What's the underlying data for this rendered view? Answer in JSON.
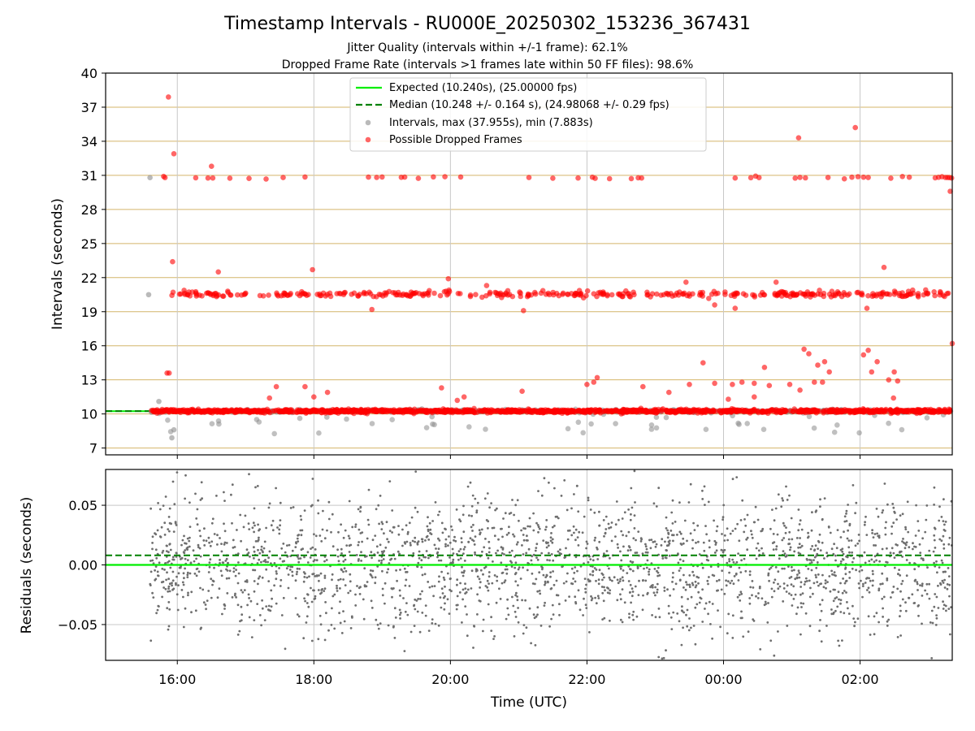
{
  "chart_data": {
    "title": "Timestamp Intervals - RU000E_20250302_153236_367431",
    "subtitle1": "Jitter Quality (intervals within +/-1 frame): 62.1%",
    "subtitle2": "Dropped Frame Rate (intervals >1 frames late within 50 FF files): 98.6%",
    "xlabel": "Time (UTC)",
    "x_ticks": [
      "16:00",
      "18:00",
      "20:00",
      "22:00",
      "00:00",
      "02:00"
    ],
    "x_tick_hours": [
      16,
      18,
      20,
      22,
      24,
      26
    ],
    "x_range_hours": [
      14.95,
      27.35
    ],
    "top_panel": {
      "type": "scatter",
      "ylabel": "Intervals (seconds)",
      "ylim": [
        6.4,
        40
      ],
      "y_ticks": [
        7,
        10,
        13,
        16,
        19,
        22,
        25,
        28,
        31,
        34,
        37,
        40
      ],
      "grid": "horizontal (goldenrod) and vertical (gray)",
      "legend_position": "upper center",
      "expected_interval": 10.24,
      "median_interval": 10.248,
      "legend": [
        {
          "label": "Expected (10.240s), (25.00000 fps)",
          "style": "solid-line",
          "color": "#00ee00"
        },
        {
          "label": "Median (10.248 +/- 0.164 s), (24.98068 +/- 0.29 fps)",
          "style": "dashed-line",
          "color": "#008000"
        },
        {
          "label": "Intervals, max (37.955s), min (7.883s)",
          "style": "marker",
          "color": "#8c8c8c"
        },
        {
          "label": "Possible Dropped Frames",
          "style": "marker",
          "color": "#ff0000"
        }
      ],
      "intervals_max": 37.955,
      "intervals_min": 7.883,
      "bands_approx": [
        {
          "level": 10.25,
          "description": "main band of intervals from ~15.6h to end"
        },
        {
          "level": 20.5,
          "description": "dropped-frame band (2x interval)"
        },
        {
          "level": 30.8,
          "description": "dropped-frame band (3x interval)"
        }
      ],
      "dropped_frame_outliers": [
        [
          15.87,
          37.9
        ],
        [
          15.95,
          32.9
        ],
        [
          16.5,
          31.8
        ],
        [
          15.93,
          23.4
        ],
        [
          16.6,
          22.5
        ],
        [
          17.98,
          22.7
        ],
        [
          19.97,
          21.9
        ],
        [
          20.53,
          21.3
        ],
        [
          23.45,
          21.6
        ],
        [
          24.77,
          21.6
        ],
        [
          26.35,
          22.9
        ],
        [
          25.1,
          34.3
        ],
        [
          25.93,
          35.2
        ],
        [
          27.35,
          16.2
        ],
        [
          27.32,
          29.6
        ],
        [
          15.85,
          13.6
        ],
        [
          15.88,
          13.6
        ],
        [
          18.85,
          19.2
        ],
        [
          21.07,
          19.1
        ],
        [
          23.87,
          19.6
        ],
        [
          24.17,
          19.3
        ],
        [
          26.1,
          19.3
        ],
        [
          17.45,
          12.4
        ],
        [
          17.87,
          12.4
        ],
        [
          17.35,
          11.4
        ],
        [
          18.2,
          11.9
        ],
        [
          18.0,
          11.5
        ],
        [
          19.87,
          12.3
        ],
        [
          20.2,
          11.5
        ],
        [
          20.1,
          11.2
        ],
        [
          21.05,
          12.0
        ],
        [
          22.0,
          12.6
        ],
        [
          22.15,
          13.2
        ],
        [
          22.1,
          12.8
        ],
        [
          22.82,
          12.4
        ],
        [
          23.2,
          11.9
        ],
        [
          23.5,
          12.6
        ],
        [
          23.7,
          14.5
        ],
        [
          23.87,
          12.7
        ],
        [
          24.07,
          11.3
        ],
        [
          24.45,
          11.5
        ],
        [
          24.45,
          12.7
        ],
        [
          24.27,
          12.8
        ],
        [
          24.13,
          12.6
        ],
        [
          24.67,
          12.5
        ],
        [
          24.6,
          14.1
        ],
        [
          24.97,
          12.6
        ],
        [
          25.12,
          12.1
        ],
        [
          25.18,
          15.7
        ],
        [
          25.25,
          15.3
        ],
        [
          25.33,
          12.8
        ],
        [
          25.38,
          14.3
        ],
        [
          25.45,
          12.8
        ],
        [
          25.55,
          13.7
        ],
        [
          25.48,
          14.6
        ],
        [
          26.05,
          15.2
        ],
        [
          26.12,
          15.6
        ],
        [
          26.17,
          13.7
        ],
        [
          26.25,
          14.6
        ],
        [
          26.42,
          13.0
        ],
        [
          26.5,
          13.7
        ],
        [
          26.55,
          12.9
        ],
        [
          26.49,
          11.4
        ]
      ]
    },
    "bottom_panel": {
      "type": "scatter",
      "ylabel": "Residuals (seconds)",
      "ylim": [
        -0.08,
        0.08
      ],
      "y_ticks": [
        "0.05",
        "0.00",
        "−0.05"
      ],
      "y_tick_values": [
        0.05,
        0.0,
        -0.05
      ],
      "expected_line": 0.0,
      "median_line": 0.008,
      "residual_spread": "points scattered between about -0.08 and 0.08 from ~15.6h to end"
    },
    "colors": {
      "expected": "#00ee00",
      "median": "#008000",
      "intervals": "#8c8c8c",
      "dropped": "#ff0000",
      "hgrid_top": "#d4b56a",
      "vgrid": "#c8c8c8"
    }
  }
}
